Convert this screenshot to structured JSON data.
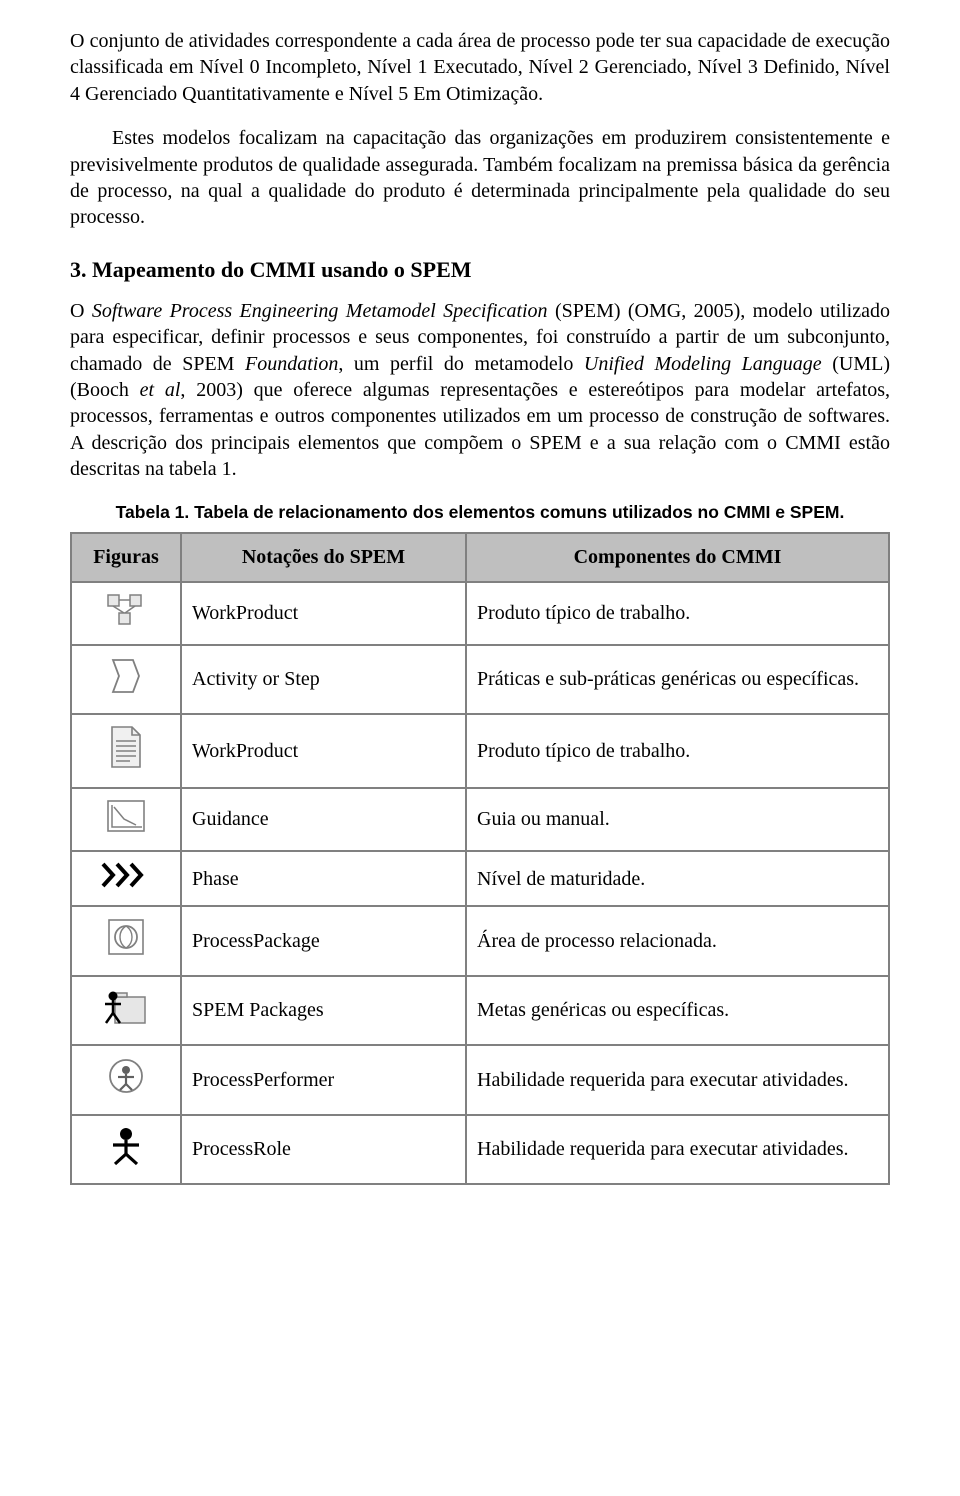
{
  "paragraphs": {
    "p1": "O conjunto de atividades correspondente a cada área de processo pode ter sua capacidade de execução classificada em Nível 0 Incompleto, Nível 1 Executado, Nível 2 Gerenciado, Nível 3 Definido, Nível 4 Gerenciado Quantitativamente e Nível 5 Em Otimização.",
    "p2": "Estes modelos focalizam na capacitação das organizações em produzirem consistentemente e previsivelmente produtos de qualidade assegurada. Também focalizam na premissa básica da gerência de processo, na qual a qualidade do produto é determinada principalmente pela qualidade do seu processo.",
    "p3_prefix": "O ",
    "p3_italic1": "Software Process Engineering Metamodel Specification",
    "p3_mid1": " (SPEM) (OMG, 2005), modelo utilizado para especificar, definir processos e seus componentes, foi construído a partir de um subconjunto, chamado de SPEM ",
    "p3_italic2": "Foundation",
    "p3_mid2": ", um perfil do metamodelo ",
    "p3_italic3": "Unified Modeling Language",
    "p3_mid3": " (UML) (Booch ",
    "p3_italic4": "et al",
    "p3_mid4": ", 2003) que oferece algumas representações e estereótipos para modelar artefatos, processos, ferramentas e outros componentes utilizados em um processo de construção de softwares. A descrição dos principais elementos que compõem o SPEM e a sua relação com o CMMI estão descritas na tabela 1."
  },
  "heading": "3.   Mapeamento do CMMI usando o SPEM",
  "table": {
    "caption": "Tabela 1. Tabela de relacionamento dos elementos comuns utilizados no CMMI e SPEM.",
    "headers": {
      "figuras": "Figuras",
      "spem": "Notações do SPEM",
      "cmmi": "Componentes do CMMI"
    },
    "rows": [
      {
        "icon": "workproduct-graph",
        "spem": "WorkProduct",
        "cmmi": "Produto típico de trabalho."
      },
      {
        "icon": "activity-arrow",
        "spem": "Activity or Step",
        "cmmi": "Práticas e sub-práticas genéricas ou específicas."
      },
      {
        "icon": "document",
        "spem": "WorkProduct",
        "cmmi": "Produto típico de trabalho."
      },
      {
        "icon": "guidance-chart",
        "spem": "Guidance",
        "cmmi": "Guia ou manual."
      },
      {
        "icon": "phase-chevrons",
        "spem": "Phase",
        "cmmi": "Nível de maturidade."
      },
      {
        "icon": "process-package",
        "spem": "ProcessPackage",
        "cmmi": "Área de processo relacionada."
      },
      {
        "icon": "spem-packages",
        "spem": "SPEM Packages",
        "cmmi": "Metas genéricas ou específicas."
      },
      {
        "icon": "process-performer",
        "spem": "ProcessPerformer",
        "cmmi_justify": true,
        "cmmi": "Habilidade   requerida   para   executar atividades."
      },
      {
        "icon": "process-role",
        "spem": "ProcessRole",
        "cmmi_justify": true,
        "cmmi": "Habilidade   requerida   para   executar atividades."
      }
    ]
  },
  "icons": {
    "workproduct-graph": {
      "type": "svg",
      "svg": "<svg width='40' height='34' viewBox='0 0 40 34'><rect x='2' y='2' width='11' height='11' fill='#e8e8e8' stroke='#808080' stroke-width='1.5'/><rect x='24' y='2' width='11' height='11' fill='#e8e8e8' stroke='#808080' stroke-width='1.5'/><rect x='13' y='20' width='11' height='11' fill='#e8e8e8' stroke='#808080' stroke-width='1.5'/><line x1='13' y1='7' x2='24' y2='7' stroke='#808080' stroke-width='1.5'/><line x1='7' y1='13' x2='18' y2='20' stroke='#808080' stroke-width='1.5'/><line x1='29' y1='13' x2='19' y2='20' stroke='#808080' stroke-width='1.5'/></svg>"
    },
    "activity-arrow": {
      "type": "svg",
      "svg": "<svg width='34' height='40' viewBox='0 0 34 40'><path d='M 4 4 L 24 4 L 30 20 L 24 36 L 4 36 L 10 20 Z' fill='#ffffff' stroke='#808080' stroke-width='1.8'/></svg>"
    },
    "document": {
      "type": "svg",
      "svg": "<svg width='36' height='44' viewBox='0 0 36 44'><path d='M 4 2 L 24 2 L 32 10 L 32 42 L 4 42 Z' fill='#f0f0f0' stroke='#808080' stroke-width='1.6'/><path d='M 24 2 L 24 10 L 32 10' fill='none' stroke='#808080' stroke-width='1.6'/><line x1='8' y1='16' x2='28' y2='16' stroke='#808080' stroke-width='1.5'/><line x1='8' y1='21' x2='28' y2='21' stroke='#808080' stroke-width='1.5'/><line x1='8' y1='26' x2='28' y2='26' stroke='#808080' stroke-width='1.5'/><line x1='8' y1='31' x2='28' y2='31' stroke='#808080' stroke-width='1.5'/><line x1='8' y1='36' x2='22' y2='36' stroke='#808080' stroke-width='1.5'/></svg>"
    },
    "guidance-chart": {
      "type": "svg",
      "svg": "<svg width='40' height='34' viewBox='0 0 40 34'><rect x='2' y='2' width='36' height='30' fill='#ffffff' stroke='#808080' stroke-width='1.6'/><polyline points='6,6 6,28 36,28' fill='none' stroke='#808080' stroke-width='1.5'/><polyline points='8,8 18,20 30,26' fill='none' stroke='#808080' stroke-width='1.5'/></svg>"
    },
    "phase-chevrons": {
      "type": "svg",
      "svg": "<svg width='50' height='26' viewBox='0 0 50 26'><path d='M 2 2 L 12 13 L 2 24' fill='none' stroke='#000000' stroke-width='4'/><path d='M 16 2 L 26 13 L 16 24' fill='none' stroke='#000000' stroke-width='4'/><path d='M 30 2 L 40 13 L 30 24' fill='none' stroke='#000000' stroke-width='4'/></svg>"
    },
    "process-package": {
      "type": "svg",
      "svg": "<svg width='40' height='40' viewBox='0 0 40 40'><rect x='3' y='3' width='34' height='34' fill='#ffffff' stroke='#808080' stroke-width='1.6'/><circle cx='20' cy='20' r='11' fill='none' stroke='#808080' stroke-width='1.8'/><path d='M 20 9 C 28 14 28 26 20 31 C 12 26 12 14 20 9' fill='none' stroke='#808080' stroke-width='1.4'/></svg>"
    },
    "spem-packages": {
      "type": "svg",
      "svg": "<svg width='46' height='40' viewBox='0 0 46 40'><rect x='12' y='10' width='30' height='26' fill='#e6e6e6' stroke='#808080' stroke-width='1.5'/><rect x='12' y='6' width='12' height='4' fill='#e6e6e6' stroke='#808080' stroke-width='1.5'/><circle cx='10' cy='9' r='4.5' fill='#000000'/><line x1='10' y1='13' x2='10' y2='26' stroke='#000000' stroke-width='2.5'/><line x1='2' y1='17' x2='18' y2='17' stroke='#000000' stroke-width='2.5'/><line x1='10' y1='26' x2='3' y2='36' stroke='#000000' stroke-width='2.5'/><line x1='10' y1='26' x2='17' y2='36' stroke='#000000' stroke-width='2.5'/></svg>"
    },
    "process-performer": {
      "type": "svg",
      "svg": "<svg width='40' height='40' viewBox='0 0 40 40'><circle cx='20' cy='20' r='16' fill='#ffffff' stroke='#808080' stroke-width='1.8'/><circle cx='20' cy='14' r='4' fill='#606060'/><line x1='20' y1='18' x2='20' y2='28' stroke='#606060' stroke-width='2.2'/><line x1='12' y1='21' x2='28' y2='21' stroke='#606060' stroke-width='2.2'/><line x1='20' y1='28' x2='14' y2='34' stroke='#606060' stroke-width='2.2'/><line x1='20' y1='28' x2='26' y2='34' stroke='#606060' stroke-width='2.2'/></svg>"
    },
    "process-role": {
      "type": "svg",
      "svg": "<svg width='34' height='40' viewBox='0 0 34 40'><circle cx='17' cy='8' r='6' fill='#000000'/><line x1='17' y1='14' x2='17' y2='28' stroke='#000000' stroke-width='3.2'/><line x1='4' y1='19' x2='30' y2='19' stroke='#000000' stroke-width='3.2'/><line x1='17' y1='28' x2='6' y2='38' stroke='#000000' stroke-width='3.2'/><line x1='17' y1='28' x2='28' y2='38' stroke='#000000' stroke-width='3.2'/></svg>"
    }
  }
}
